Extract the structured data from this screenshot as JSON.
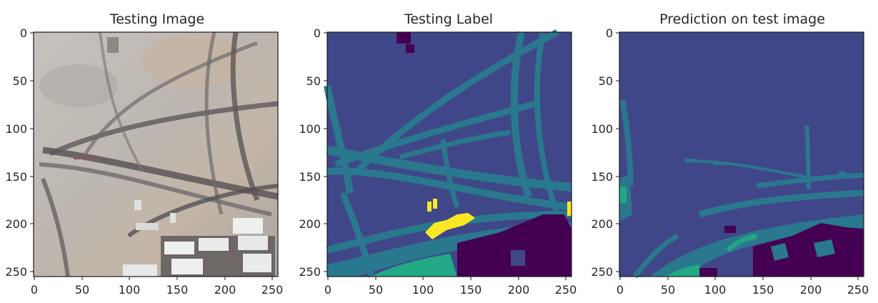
{
  "figure": {
    "panels": [
      {
        "title": "Testing Image",
        "kind": "photo",
        "x_ticks": [
          "0",
          "50",
          "100",
          "150",
          "200",
          "250"
        ],
        "y_ticks": [
          "0",
          "50",
          "100",
          "150",
          "200",
          "250"
        ]
      },
      {
        "title": "Testing Label",
        "kind": "label-map",
        "x_ticks": [
          "0",
          "50",
          "100",
          "150",
          "200",
          "250"
        ],
        "y_ticks": [
          "0",
          "50",
          "100",
          "150",
          "200",
          "250"
        ]
      },
      {
        "title": "Prediction on test image",
        "kind": "prediction-map",
        "x_ticks": [
          "0",
          "50",
          "100",
          "150",
          "200",
          "250"
        ],
        "y_ticks": [
          "0",
          "50",
          "100",
          "150",
          "200",
          "250"
        ]
      }
    ],
    "image_extent": [
      0,
      256
    ],
    "colors": {
      "background_class": "#404788",
      "road_class": "#2a788e",
      "building_class": "#440154",
      "green_class": "#22a884",
      "yellow_class": "#fde725",
      "photo_base": "#b8b3ae"
    }
  }
}
